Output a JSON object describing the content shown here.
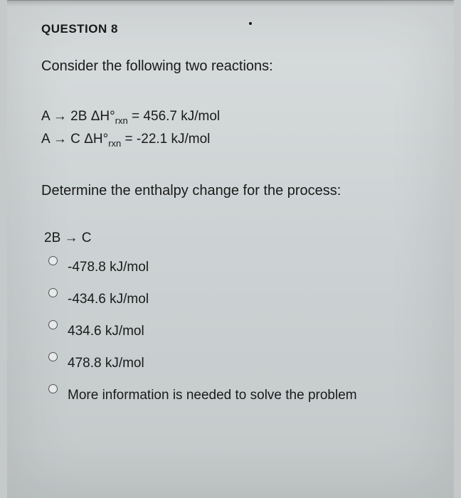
{
  "question": {
    "header": "QUESTION 8",
    "prompt": "Consider the following two reactions:",
    "reaction1_lhs": "A → 2B",
    "reaction1_dh_label": "ΔH°",
    "reaction1_sub": "rxn",
    "reaction1_value": " = 456.7 kJ/mol",
    "reaction2_lhs": "A → C",
    "reaction2_dh_label": "ΔH°",
    "reaction2_sub": "rxn",
    "reaction2_value": " = -22.1 kJ/mol",
    "determine": "Determine the enthalpy change for the process:",
    "target": "2B → C"
  },
  "options": [
    {
      "label": "-478.8 kJ/mol"
    },
    {
      "label": "-434.6 kJ/mol"
    },
    {
      "label": "434.6 kJ/mol"
    },
    {
      "label": "478.8 kJ/mol"
    },
    {
      "label": "More information is needed to solve the problem"
    }
  ],
  "style": {
    "bg": "#c5c9ca",
    "text": "#1a1a1a",
    "radio_border": "#555",
    "font_body": 20,
    "font_header": 17
  }
}
